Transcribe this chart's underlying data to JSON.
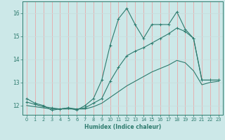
{
  "xlabel": "Humidex (Indice chaleur)",
  "bg_color": "#cce8e8",
  "line_color": "#2e7b6e",
  "grid_color_v": "#e8a8a8",
  "grid_color_h": "#c8dede",
  "xlim": [
    -0.5,
    23.5
  ],
  "ylim": [
    11.6,
    16.5
  ],
  "yticks": [
    12,
    13,
    14,
    15,
    16
  ],
  "xticks": [
    0,
    1,
    2,
    3,
    4,
    5,
    6,
    7,
    8,
    9,
    10,
    11,
    12,
    13,
    14,
    15,
    16,
    17,
    18,
    19,
    20,
    21,
    22,
    23
  ],
  "line1_x": [
    0,
    1,
    2,
    3,
    4,
    5,
    6,
    7,
    8,
    9,
    10,
    11,
    12,
    13,
    14,
    15,
    16,
    17,
    18,
    19,
    20,
    21,
    22,
    23
  ],
  "line1_y": [
    12.3,
    12.1,
    12.0,
    11.8,
    11.85,
    11.9,
    11.8,
    12.0,
    12.3,
    13.1,
    14.6,
    15.75,
    16.2,
    15.5,
    14.9,
    15.5,
    15.5,
    15.5,
    16.05,
    15.3,
    14.9,
    13.1,
    13.1,
    13.1
  ],
  "line2_x": [
    0,
    1,
    2,
    3,
    4,
    5,
    6,
    7,
    8,
    9,
    10,
    11,
    12,
    13,
    14,
    15,
    16,
    17,
    18,
    19,
    20,
    21,
    22,
    23
  ],
  "line2_y": [
    12.15,
    12.05,
    11.95,
    11.9,
    11.85,
    11.9,
    11.85,
    11.9,
    12.1,
    12.3,
    13.05,
    13.65,
    14.15,
    14.35,
    14.5,
    14.7,
    14.9,
    15.1,
    15.35,
    15.2,
    14.9,
    13.1,
    13.1,
    13.1
  ],
  "line3_x": [
    0,
    1,
    2,
    3,
    4,
    5,
    6,
    7,
    8,
    9,
    10,
    11,
    12,
    13,
    14,
    15,
    16,
    17,
    18,
    19,
    20,
    21,
    22,
    23
  ],
  "line3_y": [
    12.0,
    11.95,
    11.9,
    11.85,
    11.85,
    11.85,
    11.85,
    11.85,
    11.95,
    12.1,
    12.35,
    12.6,
    12.85,
    13.05,
    13.25,
    13.45,
    13.6,
    13.75,
    13.95,
    13.85,
    13.5,
    12.9,
    13.0,
    13.05
  ]
}
